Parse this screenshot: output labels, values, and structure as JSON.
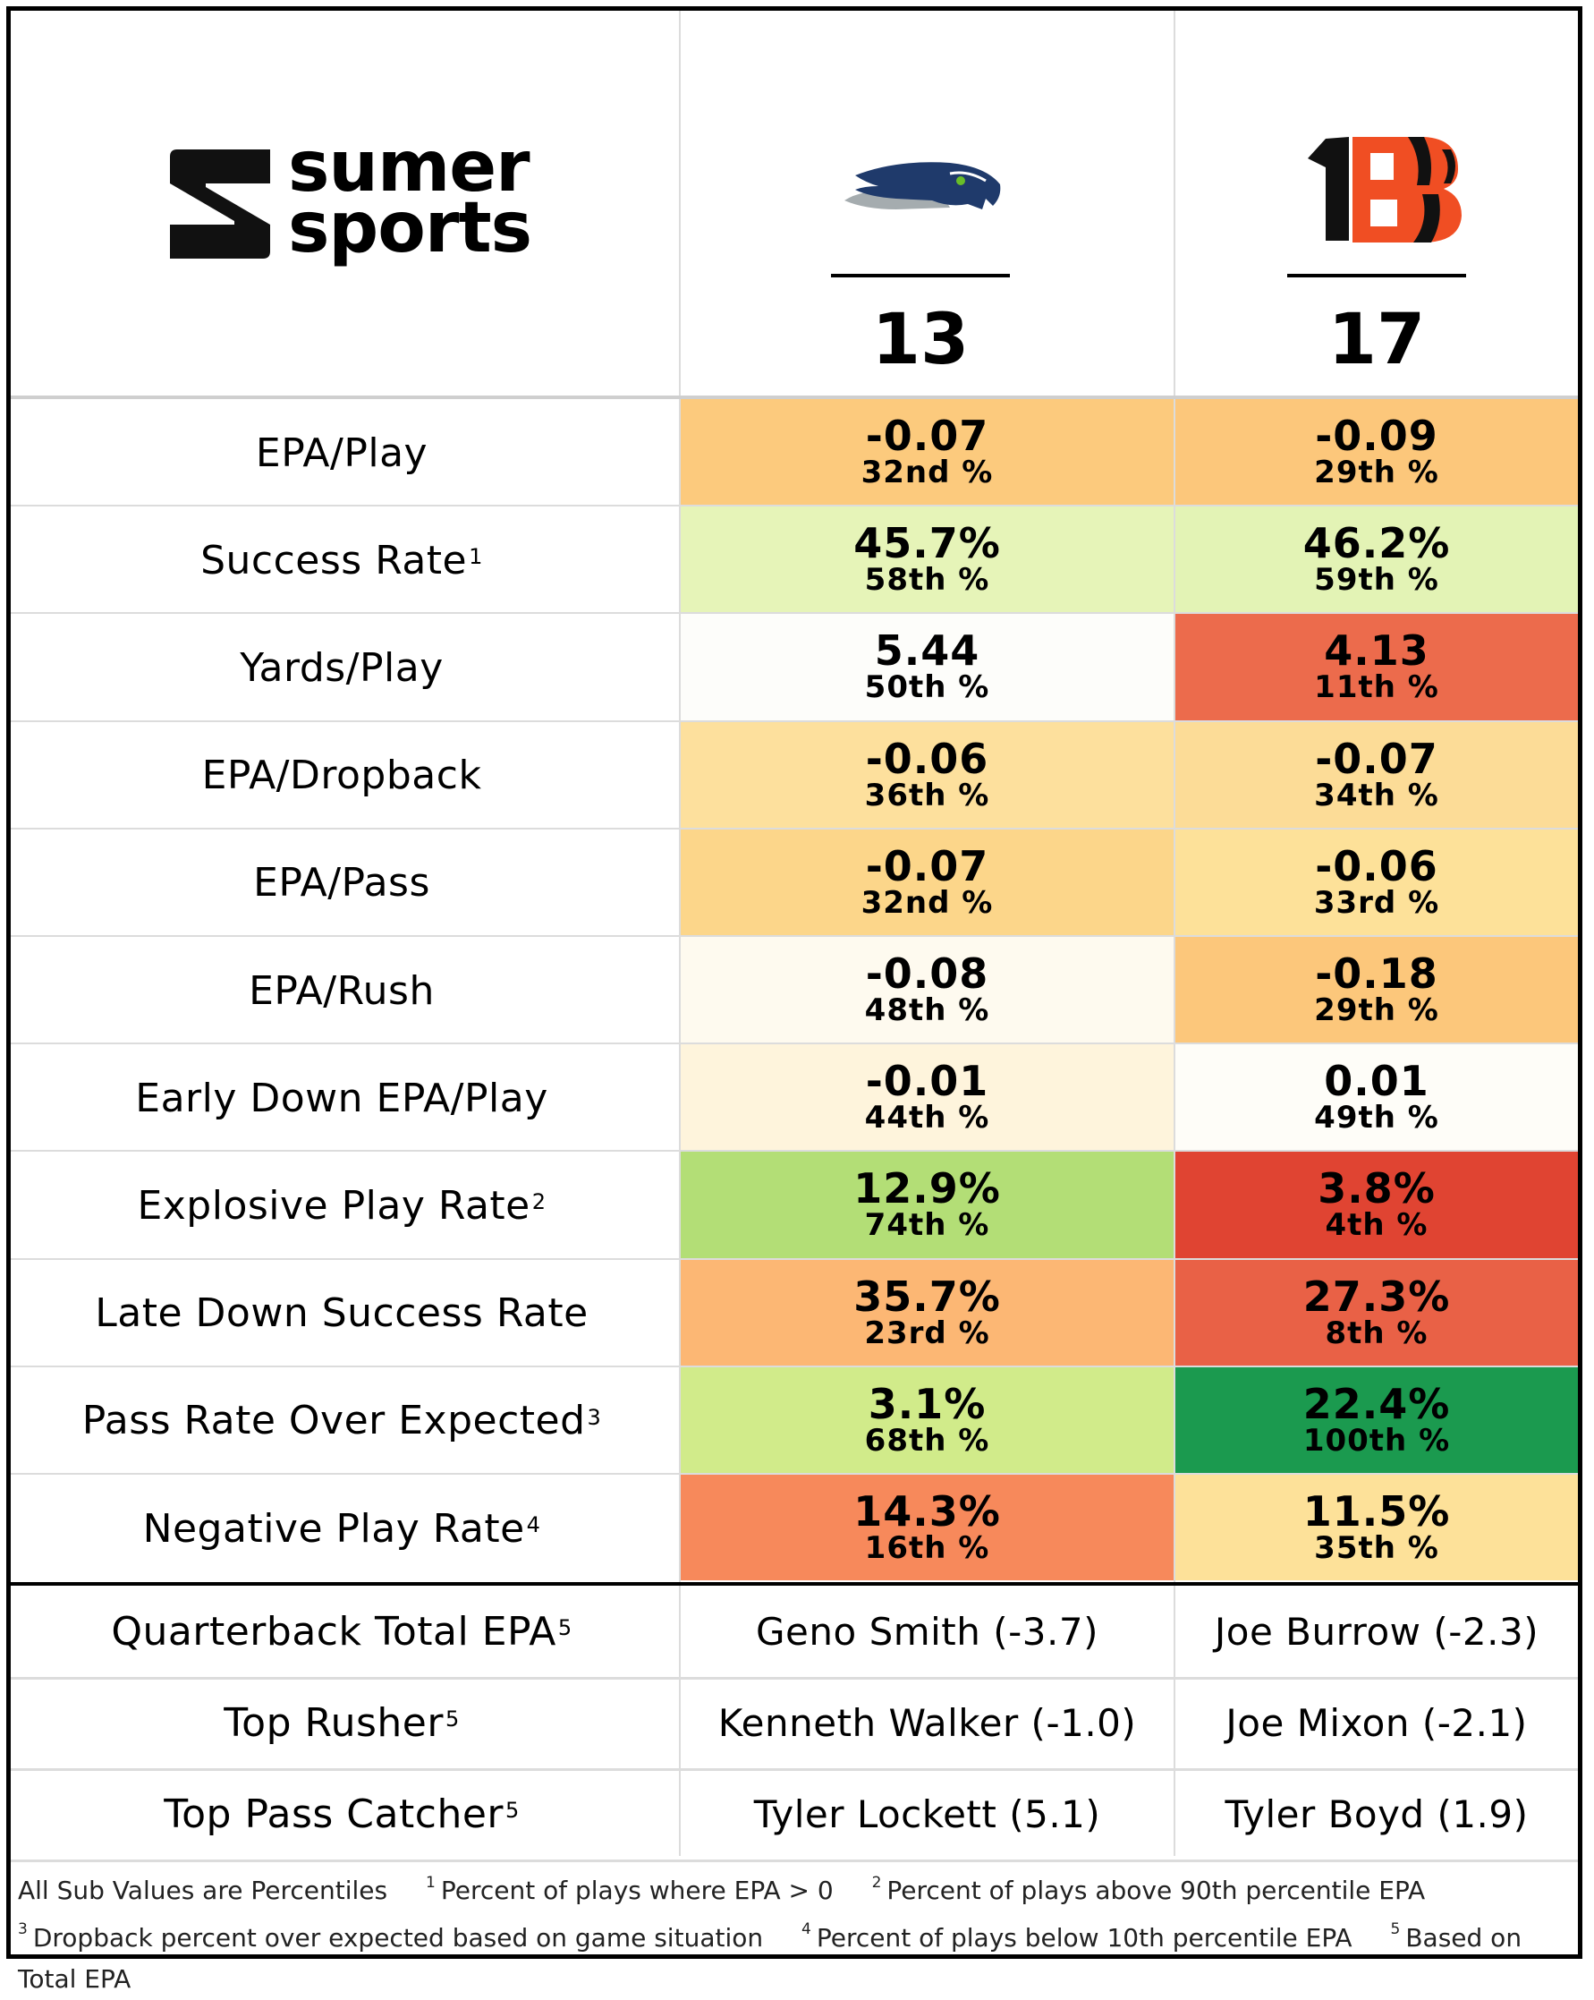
{
  "brand": {
    "line1": "sumer",
    "line2": "sports"
  },
  "teams": [
    {
      "name": "Seahawks",
      "icon": "seahawks-logo-icon",
      "score": "13"
    },
    {
      "name": "Bengals",
      "icon": "bengals-logo-icon",
      "score": "17"
    }
  ],
  "metrics": [
    {
      "label": "EPA/Play",
      "sup": "",
      "values": [
        {
          "v": "-0.07",
          "p": "32nd %",
          "color": "#fcca7d"
        },
        {
          "v": "-0.09",
          "p": "29th %",
          "color": "#fcc77b"
        }
      ]
    },
    {
      "label": "Success Rate",
      "sup": "1",
      "values": [
        {
          "v": "45.7%",
          "p": "58th %",
          "color": "#e6f4b8"
        },
        {
          "v": "46.2%",
          "p": "59th %",
          "color": "#e3f3b5"
        }
      ]
    },
    {
      "label": "Yards/Play",
      "sup": "",
      "values": [
        {
          "v": "5.44",
          "p": "50th %",
          "color": "#fdfdfa"
        },
        {
          "v": "4.13",
          "p": "11th %",
          "color": "#ec6b4c"
        }
      ]
    },
    {
      "label": "EPA/Dropback",
      "sup": "",
      "values": [
        {
          "v": "-0.06",
          "p": "36th %",
          "color": "#fde09d"
        },
        {
          "v": "-0.07",
          "p": "34th %",
          "color": "#fcdc97"
        }
      ]
    },
    {
      "label": "EPA/Pass",
      "sup": "",
      "values": [
        {
          "v": "-0.07",
          "p": "32nd %",
          "color": "#fcd68a"
        },
        {
          "v": "-0.06",
          "p": "33rd %",
          "color": "#fde199"
        }
      ]
    },
    {
      "label": "EPA/Rush",
      "sup": "",
      "values": [
        {
          "v": "-0.08",
          "p": "48th %",
          "color": "#fefaef"
        },
        {
          "v": "-0.18",
          "p": "29th %",
          "color": "#fcc77b"
        }
      ]
    },
    {
      "label": "Early Down EPA/Play",
      "sup": "",
      "values": [
        {
          "v": "-0.01",
          "p": "44th %",
          "color": "#fef4dc"
        },
        {
          "v": "0.01",
          "p": "49th %",
          "color": "#fefdf8"
        }
      ]
    },
    {
      "label": "Explosive Play Rate",
      "sup": "2",
      "values": [
        {
          "v": "12.9%",
          "p": "74th %",
          "color": "#b3de76"
        },
        {
          "v": "3.8%",
          "p": "4th %",
          "color": "#e04432"
        }
      ]
    },
    {
      "label": "Late Down Success Rate",
      "sup": "",
      "values": [
        {
          "v": "35.7%",
          "p": "23rd %",
          "color": "#fcb774"
        },
        {
          "v": "27.3%",
          "p": "8th %",
          "color": "#e96146"
        }
      ]
    },
    {
      "label": "Pass Rate Over Expected",
      "sup": "3",
      "values": [
        {
          "v": "3.1%",
          "p": "68th %",
          "color": "#d1eb8a"
        },
        {
          "v": "22.4%",
          "p": "100th %",
          "color": "#1b9a4f"
        }
      ]
    },
    {
      "label": "Negative Play Rate",
      "sup": "4",
      "values": [
        {
          "v": "14.3%",
          "p": "16th %",
          "color": "#f7895b"
        },
        {
          "v": "11.5%",
          "p": "35th %",
          "color": "#fde199"
        }
      ]
    }
  ],
  "players": [
    {
      "label": "Quarterback Total EPA",
      "sup": "5",
      "values": [
        "Geno Smith (-3.7)",
        "Joe Burrow (-2.3)"
      ]
    },
    {
      "label": "Top Rusher",
      "sup": "5",
      "values": [
        "Kenneth Walker (-1.0)",
        "Joe Mixon (-2.1)"
      ]
    },
    {
      "label": "Top Pass Catcher",
      "sup": "5",
      "values": [
        "Tyler Lockett (5.1)",
        "Tyler Boyd (1.9)"
      ]
    }
  ],
  "footnotes": {
    "intro": "All Sub Values are Percentiles",
    "n1": "Percent of plays where EPA > 0",
    "n2": "Percent of plays above 90th percentile EPA",
    "n3": "Dropback percent over expected based on game situation",
    "n4": "Percent of plays below 10th percentile EPA",
    "n5": "Based on Total EPA"
  }
}
